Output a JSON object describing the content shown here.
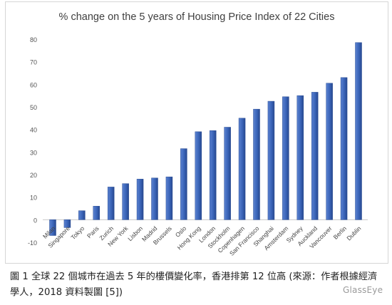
{
  "chart_data": {
    "type": "bar",
    "title": "% change on the 5 years of Housing Price Index of 22 Cities",
    "xlabel": "",
    "ylabel": "",
    "ylim": [
      -10,
      80
    ],
    "yticks": [
      80,
      70,
      60,
      50,
      40,
      30,
      20,
      10,
      0,
      -10
    ],
    "grid": false,
    "legend": "none",
    "bar_color": "#3a64b8",
    "categories": [
      "Milan",
      "Singapore",
      "Tokyo",
      "Paris",
      "Zurich",
      "New York",
      "Lisbon",
      "Madrid",
      "Brussels",
      "Oslo",
      "Hong Kong",
      "London",
      "Stockholm",
      "Copenhagen",
      "San Francisco",
      "Shanghai",
      "Amsterdam",
      "Sydney",
      "Auckland",
      "Vancouver",
      "Berlin",
      "Dublin"
    ],
    "values": [
      -7,
      -3.5,
      4,
      6,
      14.5,
      16,
      18,
      18.5,
      19,
      31.5,
      39,
      39.5,
      41,
      45,
      49,
      52.5,
      54.5,
      55,
      56.5,
      60.5,
      63,
      78.5
    ]
  },
  "caption": "圖 1 全球 22 個城市在過去 5 年的樓價變化率，香港排第 12 位高 (來源：作者根據經濟學人，2018 資料製圖 [5])",
  "watermark": "GlassEye"
}
